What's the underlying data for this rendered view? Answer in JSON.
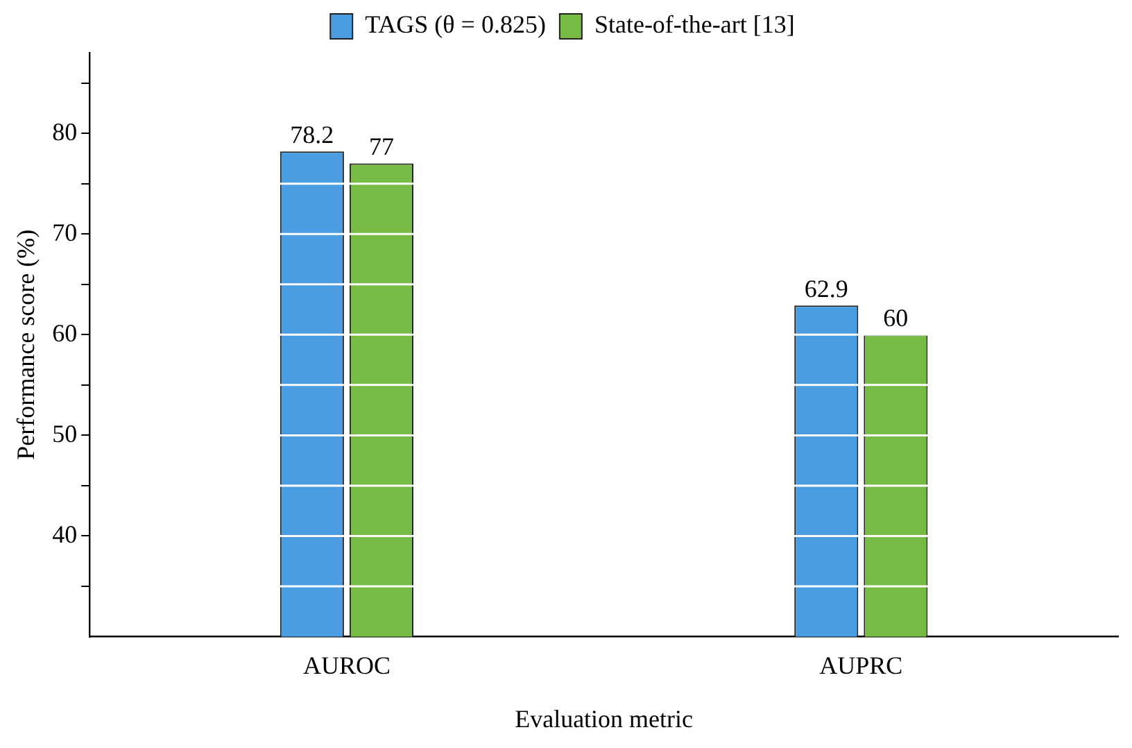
{
  "chart_data": {
    "type": "bar",
    "xlabel": "Evaluation metric",
    "ylabel": "Performance score (%)",
    "categories": [
      "AUROC",
      "AUPRC"
    ],
    "series": [
      {
        "name": "TAGS (θ = 0.825)",
        "color": "#4a9de0",
        "values": [
          78.2,
          62.9
        ]
      },
      {
        "name": "State-of-the-art [13]",
        "color": "#77bb44",
        "values": [
          77,
          60
        ]
      }
    ],
    "ylim": [
      30,
      88
    ],
    "yticks": [
      {
        "value": 35,
        "label": null
      },
      40,
      {
        "value": 45,
        "label": null
      },
      50,
      {
        "value": 55,
        "label": null
      },
      60,
      {
        "value": 65,
        "label": null
      },
      70,
      {
        "value": 75,
        "label": null
      },
      80,
      {
        "value": 85,
        "label": null
      }
    ],
    "grid": "y",
    "legend": "top",
    "data_labels": true
  }
}
